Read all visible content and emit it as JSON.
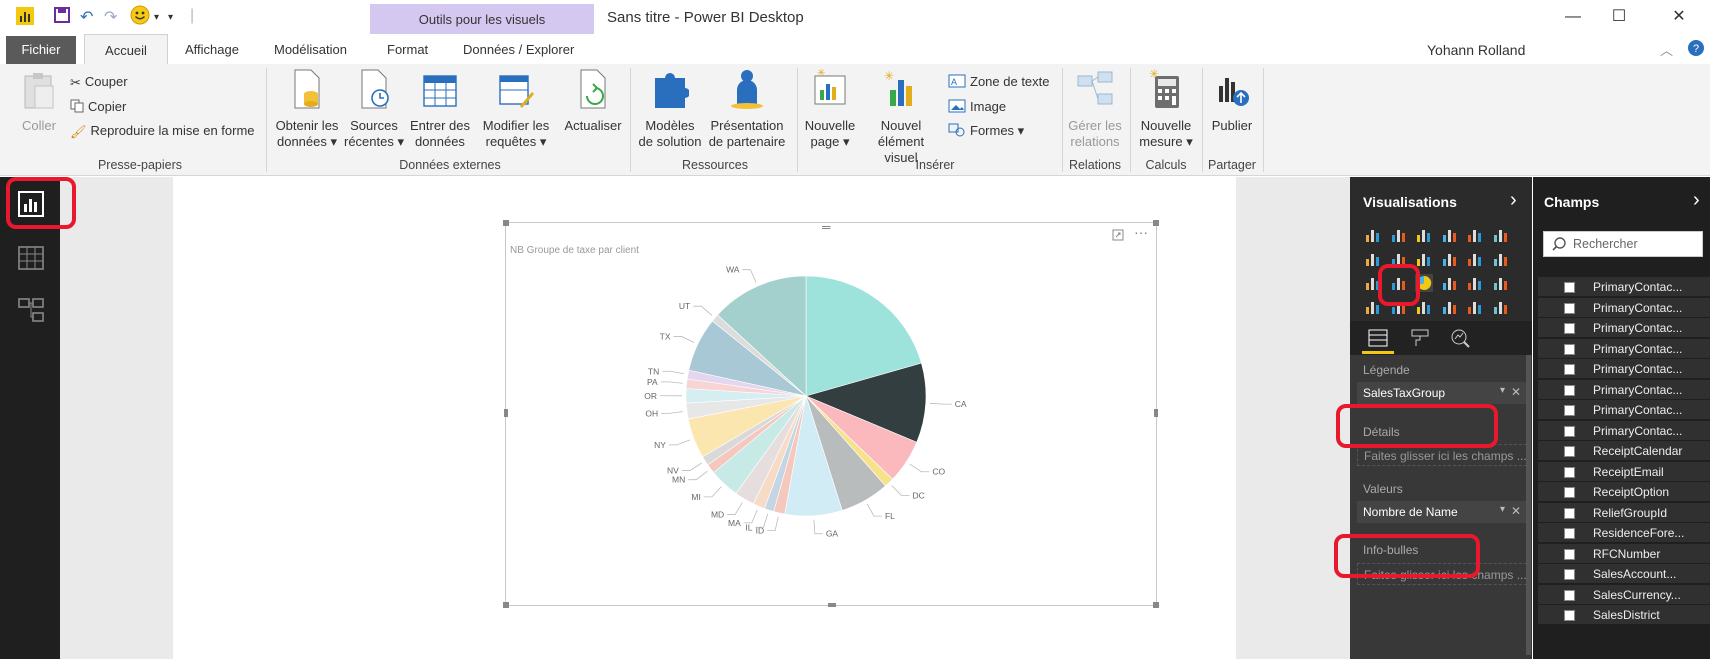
{
  "titlebar": {
    "context_tab": "Outils pour les visuels",
    "window_title": "Sans titre - Power BI Desktop",
    "minimize": "—",
    "maximize": "☐",
    "close": "✕"
  },
  "tabs": {
    "fichier": "Fichier",
    "accueil": "Accueil",
    "affichage": "Affichage",
    "modelisation": "Modélisation",
    "format": "Format",
    "donnees_explorer": "Données / Explorer"
  },
  "user": {
    "name": "Yohann Rolland"
  },
  "ribbon": {
    "presse_papiers": {
      "label": "Presse-papiers",
      "coller": "Coller",
      "couper": "Couper",
      "copier": "Copier",
      "reproduire": "Reproduire la mise en forme"
    },
    "donnees_externes": {
      "label": "Données externes",
      "obtenir": [
        "Obtenir les",
        "données ▾"
      ],
      "sources": [
        "Sources",
        "récentes ▾"
      ],
      "entrer": [
        "Entrer des",
        "données"
      ],
      "modifier": [
        "Modifier les",
        "requêtes ▾"
      ],
      "actualiser": "Actualiser"
    },
    "ressources": {
      "label": "Ressources",
      "modeles": [
        "Modèles",
        "de solution"
      ],
      "presentation": [
        "Présentation",
        "de partenaire"
      ]
    },
    "inserer": {
      "label": "Insérer",
      "nouvelle_page": [
        "Nouvelle",
        "page ▾"
      ],
      "nouvel_element": [
        "Nouvel",
        "élément visuel"
      ],
      "zone_texte": "Zone de texte",
      "image": "Image",
      "formes": "Formes ▾"
    },
    "relations": {
      "label": "Relations",
      "gerer": [
        "Gérer les",
        "relations"
      ]
    },
    "calculs": {
      "label": "Calculs",
      "nouvelle_mesure": [
        "Nouvelle",
        "mesure ▾"
      ]
    },
    "partager": {
      "label": "Partager",
      "publier": "Publier"
    }
  },
  "visual": {
    "title": "NB Groupe de taxe par client",
    "more": "···"
  },
  "chart_data": {
    "type": "pie",
    "title": "NB Groupe de taxe par client",
    "slices": [
      {
        "label": "CA",
        "value": 100,
        "color": "#333e41"
      },
      {
        "label": "CO",
        "value": 55,
        "color": "#fbb9bd"
      },
      {
        "label": "DC",
        "value": 12,
        "color": "#f7e28a"
      },
      {
        "label": "FL",
        "value": 62,
        "color": "#b8bcbc"
      },
      {
        "label": "GA",
        "value": 72,
        "color": "#d2ecf5"
      },
      {
        "label": "ID",
        "value": 14,
        "color": "#f4c8bc"
      },
      {
        "label": "IL",
        "value": 12,
        "color": "#c4d6e4"
      },
      {
        "label": "MA",
        "value": 15,
        "color": "#f6dcc6"
      },
      {
        "label": "MD",
        "value": 25,
        "color": "#e6dede"
      },
      {
        "label": "MI",
        "value": 38,
        "color": "#c8eae6"
      },
      {
        "label": "MN",
        "value": 12,
        "color": "#f4c7bf"
      },
      {
        "label": "NV",
        "value": 12,
        "color": "#d9d9d9"
      },
      {
        "label": "NY",
        "value": 50,
        "color": "#fbe6b0"
      },
      {
        "label": "OH",
        "value": 20,
        "color": "#e7e7e7"
      },
      {
        "label": "OR",
        "value": 18,
        "color": "#d4eef2"
      },
      {
        "label": "PA",
        "value": 12,
        "color": "#f8d4d4"
      },
      {
        "label": "TN",
        "value": 11,
        "color": "#e3d6ee"
      },
      {
        "label": "TX",
        "value": 68,
        "color": "#a9c8d5"
      },
      {
        "label": "UT",
        "value": 10,
        "color": "#dcdcdc"
      },
      {
        "label": "WA",
        "value": 123,
        "color": "#a3d0cc"
      },
      {
        "label": "",
        "value": 192,
        "color": "#9de3db"
      }
    ]
  },
  "viz_pane": {
    "title": "Visualisations",
    "chevron": "›",
    "legende_label": "Légende",
    "legende_field": "SalesTaxGroup",
    "details_label": "Détails",
    "details_placeholder": "Faites glisser ici les champs ...",
    "valeurs_label": "Valeurs",
    "valeurs_field": "Nombre de Name",
    "infobulles_label": "Info-bulles",
    "infobulles_placeholder": "Faites glisser ici les champs ...",
    "remove": "✕",
    "dropdown": "▾"
  },
  "fields_pane": {
    "title": "Champs",
    "chevron": "›",
    "search_placeholder": "Rechercher",
    "fields": [
      "PrimaryContac...",
      "PrimaryContac...",
      "PrimaryContac...",
      "PrimaryContac...",
      "PrimaryContac...",
      "PrimaryContac...",
      "PrimaryContac...",
      "PrimaryContac...",
      "ReceiptCalendar",
      "ReceiptEmail",
      "ReceiptOption",
      "ReliefGroupId",
      "ResidenceFore...",
      "RFCNumber",
      "SalesAccount...",
      "SalesCurrency...",
      "SalesDistrict"
    ]
  }
}
